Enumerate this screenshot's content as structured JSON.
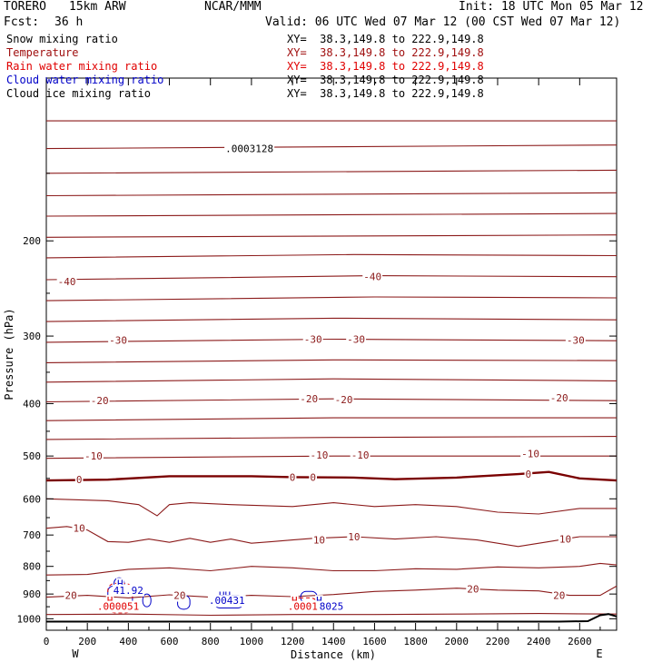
{
  "header": {
    "model": "TORERO",
    "resolution": "15km ARW",
    "center": "NCAR/MMM",
    "init": "Init: 18 UTC Mon 05 Mar 12",
    "fcst_label": "Fcst:",
    "fcst_value": "36 h",
    "valid": "Valid: 06 UTC Wed 07 Mar 12 (00 CST Wed 07 Mar 12)"
  },
  "legend": [
    {
      "name": "Snow mixing ratio",
      "xy": "XY=  38.3,149.8 to 222.9,149.8",
      "color": "#000000",
      "xy_color": "#000000"
    },
    {
      "name": "Temperature",
      "xy": "XY=  38.3,149.8 to 222.9,149.8",
      "color": "#a01010",
      "xy_color": "#a01010"
    },
    {
      "name": "Rain water mixing ratio",
      "xy": "XY=  38.3,149.8 to 222.9,149.8",
      "color": "#e00000",
      "xy_color": "#e00000"
    },
    {
      "name": "Cloud water mixing ratio",
      "xy": "XY=  38.3,149.8 to 222.9,149.8",
      "color": "#0000c8",
      "xy_color": "#000000"
    },
    {
      "name": "Cloud ice mixing ratio",
      "xy": "XY=  38.3,149.8 to 222.9,149.8",
      "color": "#000000",
      "xy_color": "#000000"
    }
  ],
  "colors": {
    "temperature": "#8b1a1a",
    "freezing_line": "#7a0000",
    "cloud_water": "#0000c8",
    "rain_water": "#e00000",
    "terrain": "#000000"
  },
  "chart_data": {
    "type": "contour",
    "xlabel": "Distance (km)",
    "ylabel": "Pressure (hPa)",
    "x_ticks": [
      "0",
      "200",
      "400",
      "600",
      "800",
      "1000",
      "1200",
      "1400",
      "1600",
      "1800",
      "2000",
      "2200",
      "2400",
      "2600"
    ],
    "y_ticks": [
      "200",
      "300",
      "400",
      "500",
      "600",
      "700",
      "800",
      "900",
      "1000"
    ],
    "xlim": [
      0,
      2780
    ],
    "ylim": [
      1050,
      100
    ],
    "y_scale": "log",
    "left_end_label": "W",
    "right_end_label": "E",
    "temperature_contours": [
      {
        "value": -40,
        "points": [
          [
            0,
            120
          ],
          [
            2780,
            120
          ]
        ]
      },
      {
        "value": -40,
        "points": [
          [
            0,
            135
          ],
          [
            2780,
            133
          ]
        ]
      },
      {
        "value": -40,
        "points": [
          [
            0,
            150
          ],
          [
            2780,
            148
          ]
        ]
      },
      {
        "value": -40,
        "points": [
          [
            0,
            165
          ],
          [
            2780,
            163
          ]
        ]
      },
      {
        "value": -40,
        "points": [
          [
            0,
            180
          ],
          [
            2780,
            178
          ]
        ]
      },
      {
        "value": -40,
        "points": [
          [
            0,
            197
          ],
          [
            2780,
            195
          ]
        ]
      },
      {
        "value": -40,
        "points": [
          [
            0,
            215
          ],
          [
            1500,
            212
          ],
          [
            2780,
            213
          ]
        ]
      },
      {
        "value": -40,
        "points": [
          [
            0,
            236
          ],
          [
            1600,
            232
          ],
          [
            2780,
            233
          ]
        ]
      },
      {
        "value": -40,
        "points": [
          [
            0,
            258
          ],
          [
            1600,
            254
          ],
          [
            2780,
            255
          ]
        ]
      },
      {
        "value": -30,
        "points": [
          [
            0,
            282
          ],
          [
            1400,
            278
          ],
          [
            2780,
            280
          ]
        ]
      },
      {
        "value": -30,
        "points": [
          [
            0,
            308
          ],
          [
            1400,
            304
          ],
          [
            2780,
            306
          ]
        ]
      },
      {
        "value": -30,
        "points": [
          [
            0,
            336
          ],
          [
            1400,
            332
          ],
          [
            2780,
            333
          ]
        ]
      },
      {
        "value": -20,
        "points": [
          [
            0,
            365
          ],
          [
            1400,
            360
          ],
          [
            2780,
            363
          ]
        ]
      },
      {
        "value": -20,
        "points": [
          [
            0,
            397
          ],
          [
            1400,
            392
          ],
          [
            2780,
            395
          ]
        ]
      },
      {
        "value": -20,
        "points": [
          [
            0,
            430
          ],
          [
            1400,
            425
          ],
          [
            2780,
            425
          ]
        ]
      },
      {
        "value": -10,
        "points": [
          [
            0,
            466
          ],
          [
            1400,
            462
          ],
          [
            2780,
            460
          ]
        ]
      },
      {
        "value": -10,
        "points": [
          [
            0,
            505
          ],
          [
            1400,
            500
          ],
          [
            2780,
            500
          ]
        ]
      },
      {
        "value": 0,
        "points": [
          [
            0,
            555
          ],
          [
            300,
            553
          ],
          [
            600,
            545
          ],
          [
            1000,
            545
          ],
          [
            1200,
            547
          ],
          [
            1500,
            548
          ],
          [
            1700,
            552
          ],
          [
            2000,
            548
          ],
          [
            2300,
            540
          ],
          [
            2450,
            535
          ],
          [
            2600,
            550
          ],
          [
            2780,
            555
          ]
        ]
      },
      {
        "value": 0,
        "points": [
          [
            0,
            600
          ],
          [
            300,
            605
          ],
          [
            450,
            615
          ],
          [
            540,
            645
          ],
          [
            600,
            615
          ],
          [
            700,
            610
          ],
          [
            900,
            615
          ],
          [
            1200,
            620
          ],
          [
            1400,
            610
          ],
          [
            1600,
            620
          ],
          [
            1800,
            615
          ],
          [
            2000,
            620
          ],
          [
            2200,
            635
          ],
          [
            2400,
            640
          ],
          [
            2600,
            625
          ],
          [
            2780,
            625
          ]
        ]
      },
      {
        "value": 10,
        "points": [
          [
            0,
            680
          ],
          [
            100,
            675
          ],
          [
            200,
            685
          ],
          [
            300,
            720
          ],
          [
            400,
            722
          ],
          [
            500,
            712
          ],
          [
            600,
            722
          ],
          [
            700,
            710
          ],
          [
            800,
            722
          ],
          [
            900,
            712
          ],
          [
            1000,
            725
          ],
          [
            1100,
            720
          ],
          [
            1200,
            715
          ],
          [
            1300,
            710
          ],
          [
            1500,
            705
          ],
          [
            1700,
            712
          ],
          [
            1900,
            705
          ],
          [
            2100,
            715
          ],
          [
            2300,
            735
          ],
          [
            2450,
            720
          ],
          [
            2600,
            705
          ],
          [
            2780,
            705
          ]
        ]
      },
      {
        "value": 10,
        "points": [
          [
            0,
            830
          ],
          [
            200,
            828
          ],
          [
            400,
            810
          ],
          [
            600,
            805
          ],
          [
            800,
            815
          ],
          [
            1000,
            800
          ],
          [
            1200,
            805
          ],
          [
            1400,
            815
          ],
          [
            1600,
            815
          ],
          [
            1800,
            808
          ],
          [
            2000,
            810
          ],
          [
            2200,
            802
          ],
          [
            2400,
            805
          ],
          [
            2600,
            800
          ],
          [
            2700,
            790
          ],
          [
            2780,
            795
          ]
        ]
      },
      {
        "value": 20,
        "points": [
          [
            0,
            912
          ],
          [
            200,
            905
          ],
          [
            400,
            915
          ],
          [
            600,
            903
          ],
          [
            800,
            912
          ],
          [
            1000,
            905
          ],
          [
            1200,
            910
          ],
          [
            1400,
            902
          ],
          [
            1600,
            890
          ],
          [
            1800,
            885
          ],
          [
            2000,
            878
          ],
          [
            2200,
            885
          ],
          [
            2400,
            888
          ],
          [
            2550,
            905
          ],
          [
            2700,
            905
          ],
          [
            2780,
            870
          ]
        ]
      },
      {
        "value": 20,
        "points": [
          [
            0,
            982
          ],
          [
            400,
            980
          ],
          [
            800,
            985
          ],
          [
            1200,
            982
          ],
          [
            1600,
            982
          ],
          [
            2000,
            980
          ],
          [
            2400,
            978
          ],
          [
            2780,
            980
          ]
        ]
      }
    ],
    "temperature_labels": [
      {
        "value": "-40",
        "x": 100,
        "p": 238
      },
      {
        "value": "-40",
        "x": 1590,
        "p": 233
      },
      {
        "value": "-30",
        "x": 350,
        "p": 305
      },
      {
        "value": "-30",
        "x": 1300,
        "p": 304
      },
      {
        "value": "-30",
        "x": 1510,
        "p": 304
      },
      {
        "value": "-30",
        "x": 2580,
        "p": 305
      },
      {
        "value": "-20",
        "x": 260,
        "p": 395
      },
      {
        "value": "-20",
        "x": 1280,
        "p": 392
      },
      {
        "value": "-20",
        "x": 1450,
        "p": 393
      },
      {
        "value": "-20",
        "x": 2500,
        "p": 390
      },
      {
        "value": "-10",
        "x": 230,
        "p": 500
      },
      {
        "value": "-10",
        "x": 1330,
        "p": 498
      },
      {
        "value": "-10",
        "x": 1530,
        "p": 498
      },
      {
        "value": "-10",
        "x": 2360,
        "p": 495
      },
      {
        "value": "0",
        "x": 160,
        "p": 553
      },
      {
        "value": "0",
        "x": 1200,
        "p": 547
      },
      {
        "value": "0",
        "x": 1300,
        "p": 547
      },
      {
        "value": "0",
        "x": 2350,
        "p": 540
      },
      {
        "value": "10",
        "x": 160,
        "p": 680
      },
      {
        "value": "10",
        "x": 1330,
        "p": 715
      },
      {
        "value": "10",
        "x": 1500,
        "p": 705
      },
      {
        "value": "10",
        "x": 2530,
        "p": 712
      },
      {
        "value": "20",
        "x": 120,
        "p": 905
      },
      {
        "value": "20",
        "x": 650,
        "p": 905
      },
      {
        "value": "20",
        "x": 2080,
        "p": 880
      },
      {
        "value": "20",
        "x": 2500,
        "p": 905
      }
    ],
    "snow_labels": [
      {
        "value": ".0003128",
        "x": 990,
        "p": 135
      }
    ],
    "cloud_water_labels": [
      {
        "value": "H",
        "x": 360,
        "p": 860
      },
      {
        "value": "41.92",
        "x": 400,
        "p": 885
      },
      {
        "value": "HH",
        "x": 870,
        "p": 905
      },
      {
        "value": ".00431",
        "x": 880,
        "p": 925
      },
      {
        "value": "H",
        "x": 1330,
        "p": 925
      },
      {
        "value": "8025",
        "x": 1390,
        "p": 948
      }
    ],
    "rain_water_labels": [
      {
        "value": "H",
        "x": 310,
        "p": 925
      },
      {
        "value": ".000051",
        "x": 350,
        "p": 948
      },
      {
        "value": "H",
        "x": 1210,
        "p": 925
      },
      {
        "value": ".0001",
        "x": 1250,
        "p": 948
      }
    ],
    "terrain": [
      [
        0,
        1012
      ],
      [
        500,
        1012
      ],
      [
        1000,
        1012
      ],
      [
        1500,
        1012
      ],
      [
        2000,
        1012
      ],
      [
        2500,
        1012
      ],
      [
        2640,
        1010
      ],
      [
        2700,
        985
      ],
      [
        2740,
        980
      ],
      [
        2780,
        990
      ]
    ]
  }
}
